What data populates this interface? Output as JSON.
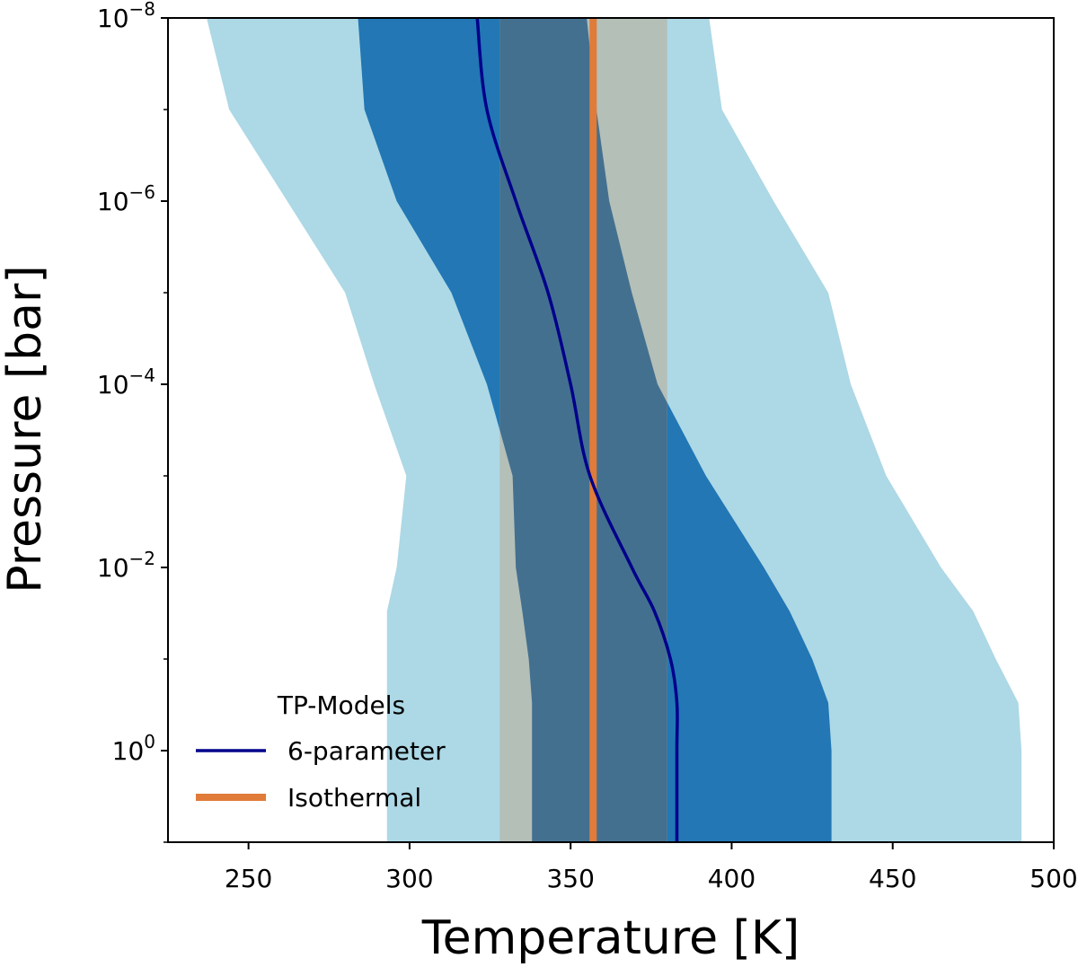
{
  "chart_data": {
    "type": "line",
    "xlabel": "Temperature [K]",
    "ylabel": "Pressure [bar]",
    "xlim": [
      225,
      500
    ],
    "ylim": [
      10,
      1e-08
    ],
    "yscale": "log",
    "x_ticks": [
      250,
      300,
      350,
      400,
      450,
      500
    ],
    "y_ticks": [
      {
        "value": 1e-08,
        "base": "10",
        "exp": "−8"
      },
      {
        "value": 1e-06,
        "base": "10",
        "exp": "−6"
      },
      {
        "value": 0.0001,
        "base": "10",
        "exp": "−4"
      },
      {
        "value": 0.01,
        "base": "10",
        "exp": "−2"
      },
      {
        "value": 1,
        "base": "10",
        "exp": "0"
      }
    ],
    "legend": {
      "title": "TP-Models",
      "position": "lower left",
      "entries": [
        "6-parameter",
        "Isothermal"
      ]
    },
    "colors": {
      "six_param_line": "#00008b",
      "six_param_band_1sigma": "#2277b4",
      "six_param_band_2sigma": "#add8e6",
      "isothermal_line": "#e07b39",
      "isothermal_band": "#b4bfb8",
      "overlap_band": "#44708f"
    },
    "series": [
      {
        "name": "6-parameter",
        "pressure": [
          1e-08,
          1e-07,
          1e-06,
          1e-05,
          0.0001,
          0.001,
          0.01,
          0.03,
          0.1,
          0.3,
          1,
          10
        ],
        "temperature": [
          321,
          324,
          333,
          343,
          350,
          356,
          369,
          376,
          381,
          383,
          383,
          383
        ]
      },
      {
        "name": "Isothermal",
        "pressure": [
          1e-08,
          10
        ],
        "temperature": [
          357,
          357
        ]
      }
    ],
    "bands": {
      "six_param_2sigma": {
        "pressure": [
          1e-08,
          1e-07,
          1e-06,
          1e-05,
          0.0001,
          0.001,
          0.01,
          0.03,
          0.1,
          0.3,
          1,
          10
        ],
        "low": [
          237,
          244,
          262,
          280,
          289,
          299,
          296,
          293,
          293,
          293,
          293,
          293
        ],
        "high": [
          393,
          397,
          413,
          430,
          437,
          448,
          465,
          475,
          482,
          489,
          490,
          490
        ]
      },
      "six_param_1sigma": {
        "pressure": [
          1e-08,
          1e-07,
          1e-06,
          1e-05,
          0.0001,
          0.001,
          0.01,
          0.03,
          0.1,
          0.3,
          1,
          10
        ],
        "low": [
          284,
          286,
          296,
          313,
          324,
          332,
          333,
          335,
          337,
          338,
          338,
          338
        ],
        "high": [
          355,
          358,
          362,
          369,
          377,
          392,
          410,
          418,
          425,
          430,
          431,
          431
        ]
      },
      "isothermal": {
        "pressure": [
          1e-08,
          10
        ],
        "low": [
          328,
          328
        ],
        "high": [
          380,
          380
        ]
      }
    }
  }
}
